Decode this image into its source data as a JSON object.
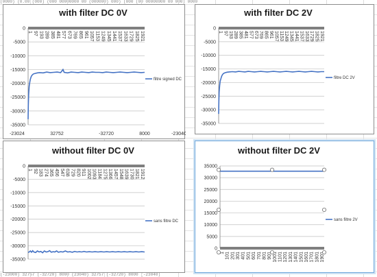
{
  "sheet": {
    "top_strip_text": "(0000) (0.00 (000) (000 00000000 00 (000000) 000) (000 (00 00000000 00 000) 0000",
    "bottom_strip_text": "(-23000) 32757 (-32720) 8000 (23040) 32757 (-32720) 8000 (-23040)"
  },
  "chart_data": [
    {
      "id": "c1",
      "type": "line",
      "title": "with filter DC 0V",
      "ylim": [
        -35000,
        0
      ],
      "yticks": [
        "0",
        "-5000",
        "-10000",
        "-15000",
        "-20000",
        "-25000",
        "-30000",
        "-35000"
      ],
      "x_tick_labels": [
        "1",
        "97",
        "193",
        "289",
        "385",
        "481",
        "577",
        "673",
        "769",
        "865",
        "961",
        "1057",
        "1153",
        "1249",
        "1345",
        "1441",
        "1537",
        "1633",
        "1729",
        "1825",
        "1921"
      ],
      "footer_labels": [
        "-23024",
        "32752",
        "-32720",
        "8000",
        "-23040"
      ],
      "series": [
        {
          "name": "filtre signed DC",
          "color": "#4472c4",
          "points": [
            [
              1,
              -33000
            ],
            [
              5,
              -28000
            ],
            [
              10,
              -24000
            ],
            [
              20,
              -21000
            ],
            [
              30,
              -19500
            ],
            [
              40,
              -18500
            ],
            [
              55,
              -17500
            ],
            [
              70,
              -17000
            ],
            [
              90,
              -16600
            ],
            [
              120,
              -16400
            ],
            [
              160,
              -16200
            ],
            [
              200,
              -16100
            ],
            [
              260,
              -16200
            ],
            [
              320,
              -15900
            ],
            [
              380,
              -16100
            ],
            [
              440,
              -16000
            ],
            [
              500,
              -15900
            ],
            [
              560,
              -16100
            ],
            [
              600,
              -15000
            ],
            [
              620,
              -16000
            ],
            [
              680,
              -16200
            ],
            [
              740,
              -15900
            ],
            [
              800,
              -16000
            ],
            [
              860,
              -16100
            ],
            [
              920,
              -15900
            ],
            [
              980,
              -16000
            ],
            [
              1040,
              -16100
            ],
            [
              1100,
              -15900
            ],
            [
              1160,
              -16000
            ],
            [
              1220,
              -16000
            ],
            [
              1280,
              -16100
            ],
            [
              1340,
              -15900
            ],
            [
              1400,
              -16000
            ],
            [
              1460,
              -16100
            ],
            [
              1520,
              -16000
            ],
            [
              1580,
              -15900
            ],
            [
              1640,
              -16000
            ],
            [
              1700,
              -16100
            ],
            [
              1760,
              -16000
            ],
            [
              1820,
              -15900
            ],
            [
              1880,
              -16000
            ],
            [
              1940,
              -16100
            ],
            [
              2000,
              -16000
            ]
          ]
        }
      ]
    },
    {
      "id": "c2",
      "type": "line",
      "title": "with filter DC 2V",
      "ylim": [
        -35000,
        0
      ],
      "yticks": [
        "0",
        "-5000",
        "-10000",
        "-15000",
        "-20000",
        "-25000",
        "-30000",
        "-35000"
      ],
      "x_tick_labels": [
        "1",
        "97",
        "193",
        "289",
        "385",
        "481",
        "577",
        "673",
        "769",
        "865",
        "961",
        "1057",
        "1153",
        "1249",
        "1345",
        "1441",
        "1537",
        "1633",
        "1729",
        "1825",
        "1921"
      ],
      "footer_labels": [],
      "series": [
        {
          "name": "filtre DC 2V",
          "color": "#4472c4",
          "points": [
            [
              1,
              -31500
            ],
            [
              5,
              -27000
            ],
            [
              10,
              -23500
            ],
            [
              20,
              -21000
            ],
            [
              30,
              -19500
            ],
            [
              40,
              -18800
            ],
            [
              55,
              -17800
            ],
            [
              70,
              -17200
            ],
            [
              90,
              -16700
            ],
            [
              120,
              -16400
            ],
            [
              160,
              -16200
            ],
            [
              200,
              -16100
            ],
            [
              260,
              -16000
            ],
            [
              320,
              -16100
            ],
            [
              380,
              -15900
            ],
            [
              440,
              -16000
            ],
            [
              500,
              -16100
            ],
            [
              560,
              -15900
            ],
            [
              620,
              -16000
            ],
            [
              680,
              -16100
            ],
            [
              740,
              -16000
            ],
            [
              800,
              -15900
            ],
            [
              860,
              -16000
            ],
            [
              920,
              -16100
            ],
            [
              980,
              -16000
            ],
            [
              1040,
              -15900
            ],
            [
              1100,
              -16000
            ],
            [
              1160,
              -16100
            ],
            [
              1220,
              -16000
            ],
            [
              1280,
              -15900
            ],
            [
              1340,
              -16000
            ],
            [
              1400,
              -16100
            ],
            [
              1460,
              -16000
            ],
            [
              1520,
              -15900
            ],
            [
              1580,
              -16000
            ],
            [
              1640,
              -16100
            ],
            [
              1700,
              -16000
            ],
            [
              1760,
              -15900
            ],
            [
              1820,
              -16000
            ],
            [
              1880,
              -16100
            ],
            [
              1940,
              -16000
            ],
            [
              2000,
              -16000
            ]
          ]
        }
      ]
    },
    {
      "id": "c3",
      "type": "line",
      "title": "without filter DC 0V",
      "ylim": [
        -35000,
        0
      ],
      "yticks": [
        "0",
        "-5000",
        "-10000",
        "-15000",
        "-20000",
        "-25000",
        "-30000",
        "-35000"
      ],
      "x_tick_labels": [
        "1",
        "92",
        "183",
        "274",
        "365",
        "456",
        "547",
        "638",
        "729",
        "820",
        "911",
        "1002",
        "1093",
        "1184",
        "1275",
        "1366",
        "1457",
        "1548",
        "1639",
        "1730",
        "1821",
        "1912"
      ],
      "footer_labels": [],
      "series": [
        {
          "name": "sans filtre DC",
          "color": "#4472c4",
          "points": [
            [
              1,
              -32500
            ],
            [
              20,
              -32300
            ],
            [
              40,
              -31900
            ],
            [
              60,
              -32400
            ],
            [
              80,
              -31800
            ],
            [
              100,
              -32300
            ],
            [
              130,
              -32500
            ],
            [
              160,
              -31900
            ],
            [
              190,
              -32300
            ],
            [
              220,
              -32100
            ],
            [
              250,
              -32600
            ],
            [
              280,
              -31900
            ],
            [
              310,
              -32300
            ],
            [
              340,
              -32200
            ],
            [
              370,
              -31800
            ],
            [
              400,
              -32400
            ],
            [
              430,
              -32200
            ],
            [
              460,
              -32300
            ],
            [
              490,
              -31900
            ],
            [
              520,
              -32400
            ],
            [
              560,
              -32200
            ],
            [
              600,
              -32300
            ],
            [
              640,
              -31900
            ],
            [
              680,
              -32300
            ],
            [
              720,
              -32200
            ],
            [
              760,
              -32400
            ],
            [
              800,
              -32100
            ],
            [
              840,
              -32300
            ],
            [
              880,
              -32200
            ],
            [
              920,
              -32300
            ],
            [
              960,
              -32100
            ],
            [
              1000,
              -32300
            ],
            [
              1050,
              -32200
            ],
            [
              1100,
              -32300
            ],
            [
              1150,
              -32200
            ],
            [
              1200,
              -32300
            ],
            [
              1250,
              -32200
            ],
            [
              1300,
              -32300
            ],
            [
              1350,
              -32200
            ],
            [
              1400,
              -32300
            ],
            [
              1450,
              -32200
            ],
            [
              1500,
              -32300
            ],
            [
              1550,
              -32200
            ],
            [
              1600,
              -32300
            ],
            [
              1650,
              -32200
            ],
            [
              1700,
              -32300
            ],
            [
              1750,
              -32200
            ],
            [
              1800,
              -32300
            ],
            [
              1850,
              -32200
            ],
            [
              1900,
              -32300
            ],
            [
              1950,
              -32200
            ],
            [
              2000,
              -32300
            ]
          ]
        }
      ]
    },
    {
      "id": "c4",
      "type": "line",
      "title": "without filter DC 2V",
      "ylim": [
        0,
        35000
      ],
      "yticks": [
        "35000",
        "30000",
        "25000",
        "20000",
        "15000",
        "10000",
        "5000",
        "0"
      ],
      "x_tick_labels": [
        "1",
        "101",
        "201",
        "301",
        "401",
        "501",
        "601",
        "701",
        "801",
        "901",
        "1001",
        "1101",
        "1201",
        "1301",
        "1401",
        "1501",
        "1601",
        "1701",
        "1801",
        "1901"
      ],
      "footer_labels": [],
      "series": [
        {
          "name": "sans filtre 2V",
          "color": "#4472c4",
          "points": [
            [
              1,
              32760
            ],
            [
              2000,
              32760
            ]
          ]
        }
      ]
    }
  ]
}
